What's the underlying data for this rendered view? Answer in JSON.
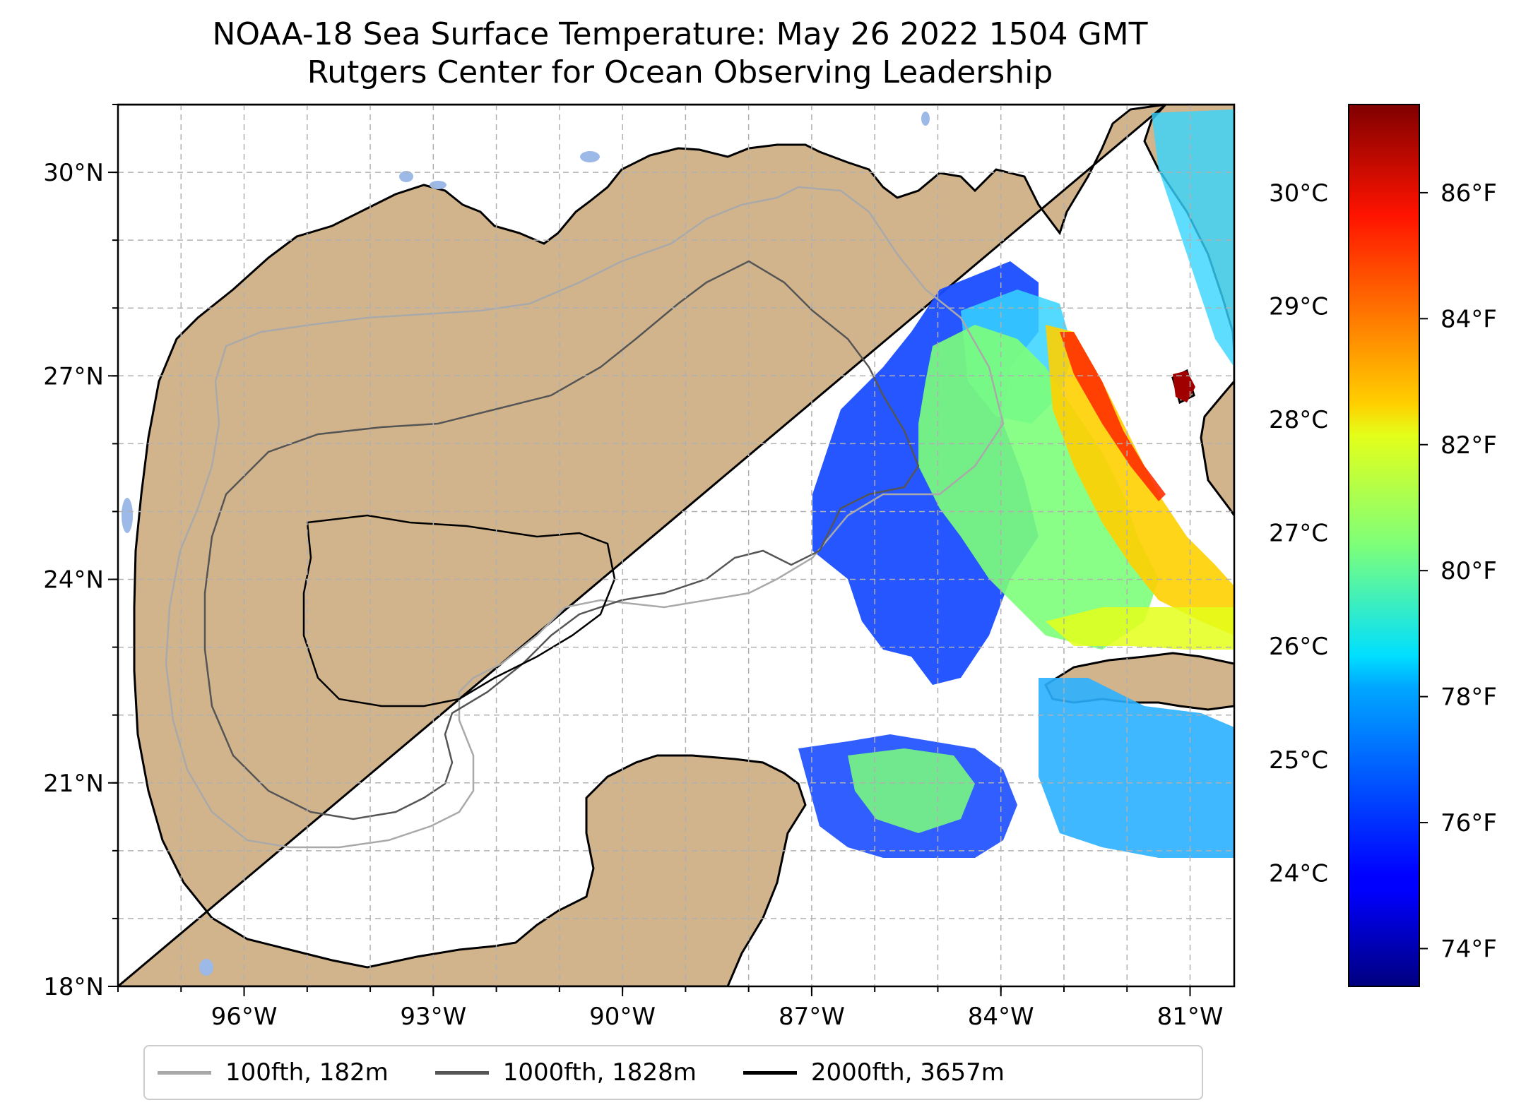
{
  "title": {
    "line1": "NOAA-18 Sea Surface Temperature: May 26 2022 1504 GMT",
    "line2": "Rutgers Center for Ocean Observing Leadership"
  },
  "map": {
    "lon_range": [
      -98,
      -80.3
    ],
    "lat_range": [
      18,
      31
    ],
    "lat_ticks": [
      {
        "value": 30,
        "label": "30°N"
      },
      {
        "value": 27,
        "label": "27°N"
      },
      {
        "value": 24,
        "label": "24°N"
      },
      {
        "value": 21,
        "label": "21°N"
      },
      {
        "value": 18,
        "label": "18°N"
      }
    ],
    "lon_ticks": [
      {
        "value": -96,
        "label": "96°W"
      },
      {
        "value": -93,
        "label": "93°W"
      },
      {
        "value": -90,
        "label": "90°W"
      },
      {
        "value": -87,
        "label": "87°W"
      },
      {
        "value": -84,
        "label": "84°W"
      },
      {
        "value": -81,
        "label": "81°W"
      }
    ],
    "gridlines": "dashed",
    "colors": {
      "land": "#d2b48c",
      "ocean_no_data": "#ffffff",
      "lakes": "#9db9e8",
      "coastline": "#000000",
      "grid": "#b0b0b0"
    }
  },
  "colorbar": {
    "colormap": "jet",
    "fahrenheit_ticks": [
      {
        "value": 74,
        "label": "74°F"
      },
      {
        "value": 76,
        "label": "76°F"
      },
      {
        "value": 78,
        "label": "78°F"
      },
      {
        "value": 80,
        "label": "80°F"
      },
      {
        "value": 82,
        "label": "82°F"
      },
      {
        "value": 84,
        "label": "84°F"
      },
      {
        "value": 86,
        "label": "86°F"
      }
    ],
    "celsius_ticks": [
      {
        "value": 24,
        "label": "24°C"
      },
      {
        "value": 25,
        "label": "25°C"
      },
      {
        "value": 26,
        "label": "26°C"
      },
      {
        "value": 27,
        "label": "27°C"
      },
      {
        "value": 28,
        "label": "28°C"
      },
      {
        "value": 29,
        "label": "29°C"
      },
      {
        "value": 30,
        "label": "30°C"
      }
    ],
    "f_range": [
      73.4,
      87.4
    ]
  },
  "legend": {
    "items": [
      {
        "label": "100fth, 182m",
        "color": "#a9a9a9"
      },
      {
        "label": "1000fth, 1828m",
        "color": "#555555"
      },
      {
        "label": "2000fth, 3657m",
        "color": "#000000"
      }
    ]
  }
}
